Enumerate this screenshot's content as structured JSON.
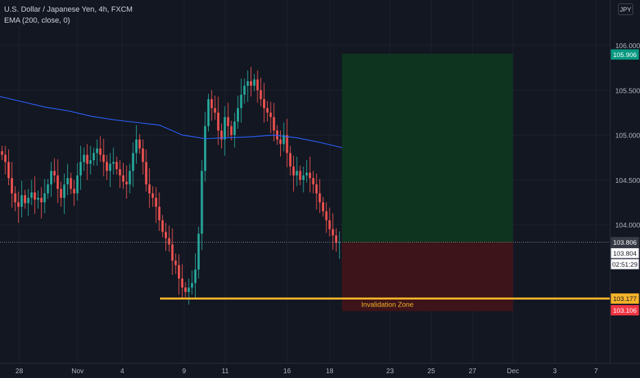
{
  "header": {
    "symbol_line": "U.S. Dollar / Japanese Yen, 4h, FXCM",
    "indicator_line": "EMA (200, close, 0)",
    "currency_button": "JPY"
  },
  "price_axis": {
    "ticks": [
      "106.000",
      "105.500",
      "105.000",
      "104.500",
      "104.000"
    ],
    "tick_values": [
      106.0,
      105.5,
      105.0,
      104.5,
      104.0
    ]
  },
  "time_axis": {
    "labels": [
      "28",
      "Nov",
      "4",
      "9",
      "11",
      "16",
      "18",
      "23",
      "25",
      "27",
      "Dec",
      "3",
      "7"
    ]
  },
  "price_labels": {
    "target": {
      "text": "105.906",
      "value": 105.906,
      "color": "#089981"
    },
    "last": {
      "text": "103.806",
      "value": 103.806,
      "color": "#363a45"
    },
    "bid": {
      "text": "103.804"
    },
    "countdown": {
      "text": "02:51:29"
    },
    "invalidation_level": {
      "text": "103.177",
      "value": 103.177,
      "color": "#f5b32a"
    },
    "stop": {
      "text": "103.106",
      "value": 103.106,
      "color": "#f23645"
    }
  },
  "position_tool": {
    "entry": 103.806,
    "target": 105.906,
    "stop": 103.106,
    "profit_color": "#0e3420",
    "loss_color": "#3d1419"
  },
  "annotation": {
    "label": "Invalidation Zone",
    "color": "#f5b32a"
  },
  "colors": {
    "up": "#26a69a",
    "down": "#ef5350",
    "ema": "#2962ff"
  },
  "chart_data": {
    "type": "candlestick",
    "title": "U.S. Dollar / Japanese Yen, 4h, FXCM",
    "ylim": [
      102.5,
      106.4
    ],
    "series": [
      {
        "name": "EMA (200, close, 0)",
        "type": "line",
        "values": [
          105.43,
          105.37,
          105.31,
          105.27,
          105.21,
          105.17,
          105.14,
          105.11,
          105.0,
          104.96,
          104.97,
          104.98,
          105.0,
          104.97,
          104.92,
          104.86
        ]
      }
    ]
  }
}
